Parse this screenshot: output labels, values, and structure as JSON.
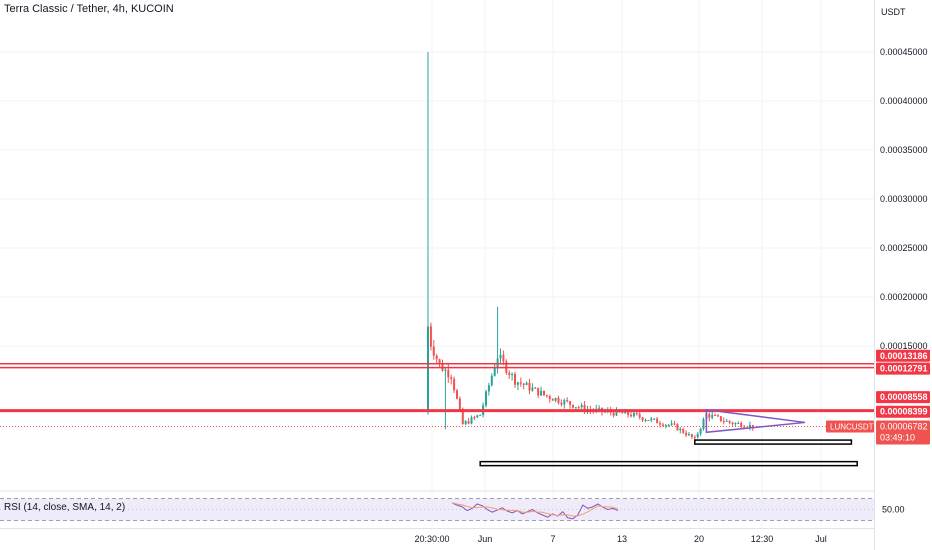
{
  "header": {
    "symbol_title": "Terra Classic / Tether, 4h, KUCOIN"
  },
  "price_axis": {
    "currency": "USDT",
    "tick_labels": [
      "0.00045000",
      "0.00040000",
      "0.00035000",
      "0.00030000",
      "0.00025000",
      "0.00020000",
      "0.00015000"
    ]
  },
  "time_axis": {
    "tick_labels": [
      "20:30:00",
      "Jun",
      "7",
      "13",
      "20",
      "12:30",
      "Jul"
    ]
  },
  "colors": {
    "up": "#26a69a",
    "down": "#ef5350",
    "level_line": "#f23645",
    "triangle": "#7e57c2",
    "rsi_line": "#7e57c2",
    "rsi_sma": "#f0a070",
    "rsi_band": "#e9e3f7"
  },
  "levels": [
    {
      "price": 0.00013186,
      "label": "0.00013186"
    },
    {
      "price": 0.00012791,
      "label": "0.00012791"
    },
    {
      "price": 8.558e-05,
      "label": "0.00008558"
    },
    {
      "price": 8.399e-05,
      "label": "0.00008399"
    }
  ],
  "current_price": {
    "ticker": "LUNCUSDT",
    "price": 6.782e-05,
    "label": "0.00006782",
    "countdown": "03:49:10"
  },
  "rsi": {
    "title": "RSI (14, close, SMA, 14, 2)",
    "level_label": "50.00",
    "band_upper": 70,
    "band_lower": 30
  },
  "chart_data": {
    "type": "candlestick",
    "title": "Terra Classic / Tether, 4h, KUCOIN",
    "xlabel": "",
    "ylabel": "USDT",
    "y_range": [
      3.5e-05,
      0.000475
    ],
    "x_categories_note": "4h candles from listing until mid-June",
    "close_path": [
      {
        "t": 0,
        "close": 0.00016
      },
      {
        "t": 4,
        "close": 0.00013
      },
      {
        "t": 8,
        "close": 0.00012
      },
      {
        "t": 12,
        "close": 7e-05
      },
      {
        "t": 18,
        "close": 8e-05
      },
      {
        "t": 24,
        "close": 0.00014
      },
      {
        "t": 30,
        "close": 0.000115
      },
      {
        "t": 40,
        "close": 0.0001
      },
      {
        "t": 55,
        "close": 8.5e-05
      },
      {
        "t": 70,
        "close": 8e-05
      },
      {
        "t": 85,
        "close": 6.8e-05
      },
      {
        "t": 92,
        "close": 5.5e-05
      },
      {
        "t": 96,
        "close": 8e-05
      },
      {
        "t": 104,
        "close": 7.2e-05
      },
      {
        "t": 112,
        "close": 6.8e-05
      }
    ],
    "spike_high": 0.00045,
    "spike_second_high": 0.00019,
    "annotations": {
      "triangle": {
        "t_start": 96,
        "t_end": 130,
        "high": 8.5e-05,
        "low": 6.2e-05,
        "apex": 7.2e-05
      },
      "rect_upper": {
        "t_start": 92,
        "t_end": 146,
        "price_top": 5.4e-05,
        "price_bottom": 5.2e-05
      },
      "rect_lower": {
        "t_start": 18,
        "t_end": 148,
        "price_top": 3.2e-05,
        "price_bottom": 3e-05
      }
    },
    "rsi_values": [
      62,
      58,
      55,
      48,
      52,
      60,
      57,
      50,
      45,
      49,
      53,
      47,
      44,
      48,
      42,
      46,
      50,
      44,
      40,
      36,
      42,
      38,
      46,
      35,
      33,
      40,
      58,
      52,
      55,
      60,
      54,
      50,
      52,
      48
    ],
    "grid": true,
    "legend": "none"
  }
}
